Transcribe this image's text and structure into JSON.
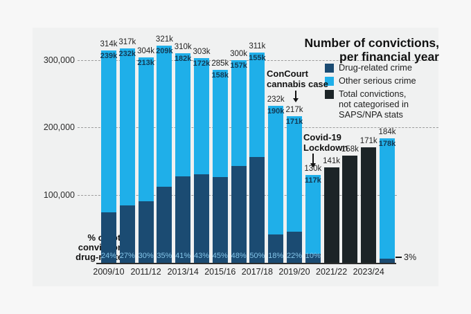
{
  "page": {
    "background": "#f7f7f7",
    "panel_background": "#f0f1f1"
  },
  "header": {
    "title_line1": "Number of convictions,",
    "title_line2": "per financial year"
  },
  "legend": {
    "items": [
      {
        "label": "Drug-related crime",
        "color": "#1b4b72"
      },
      {
        "label": "Other serious crime",
        "color": "#1fafe9"
      },
      {
        "label": "Total convictions, not categorised in SAPS/NPA stats",
        "label_lines": [
          "Total convictions,",
          "not categorised in",
          "SAPS/NPA stats"
        ],
        "color": "#1c2427"
      }
    ]
  },
  "annotations": {
    "concourt": {
      "lines": [
        "ConCourt",
        "cannabis case"
      ]
    },
    "covid": {
      "lines": [
        "Covid-19",
        "Lockdown"
      ]
    },
    "axis_note_lines": [
      "% of total",
      "convictions",
      "drug-related"
    ],
    "last_bar_pct": "3%"
  },
  "chart_data": {
    "type": "bar",
    "stacked": true,
    "title": "Number of convictions, per financial year",
    "units": "thousands of convictions per financial year",
    "ylim_k": [
      0,
      340
    ],
    "grid": "dashed horizontal",
    "legend_position": "top-right",
    "colors": {
      "drug_related": "#1b4b72",
      "other_serious": "#1fafe9",
      "uncategorised_total": "#1c2427",
      "pct_text": "#85c6ea",
      "other_value_text": "#123a55"
    },
    "y_axis": {
      "ticks": [
        {
          "value_k": 300,
          "label": "300,000"
        },
        {
          "value_k": 200,
          "label": "200,000"
        },
        {
          "value_k": 100,
          "label": "100,000"
        }
      ]
    },
    "x_tick_labels": [
      "2009/10",
      "2011/12",
      "2013/14",
      "2015/16",
      "2017/18",
      "2019/20",
      "2021/22",
      "2023/24"
    ],
    "bars": [
      {
        "year": "2009/10",
        "style": "stacked",
        "total_k": 314,
        "drug_k": 75,
        "other_k": 239,
        "total_label": "314k",
        "other_label": "239k",
        "pct_label": "24%"
      },
      {
        "year": "2010/11",
        "style": "stacked",
        "total_k": 317,
        "drug_k": 85,
        "other_k": 232,
        "total_label": "317k",
        "other_label": "232k",
        "pct_label": "27%"
      },
      {
        "year": "2011/12",
        "style": "stacked",
        "total_k": 304,
        "drug_k": 91,
        "other_k": 213,
        "total_label": "304k",
        "other_label": "213k",
        "pct_label": "30%"
      },
      {
        "year": "2012/13",
        "style": "stacked",
        "total_k": 321,
        "drug_k": 112,
        "other_k": 209,
        "total_label": "321k",
        "other_label": "209k",
        "pct_label": "35%"
      },
      {
        "year": "2013/14",
        "style": "stacked",
        "total_k": 310,
        "drug_k": 128,
        "other_k": 182,
        "total_label": "310k",
        "other_label": "182k",
        "pct_label": "41%"
      },
      {
        "year": "2014/15",
        "style": "stacked",
        "total_k": 303,
        "drug_k": 131,
        "other_k": 172,
        "total_label": "303k",
        "other_label": "172k",
        "pct_label": "43%"
      },
      {
        "year": "2015/16",
        "style": "stacked",
        "total_k": 285,
        "drug_k": 127,
        "other_k": 158,
        "total_label": "285k",
        "other_label": "158k",
        "pct_label": "45%"
      },
      {
        "year": "2016/17",
        "style": "stacked",
        "total_k": 300,
        "drug_k": 143,
        "other_k": 157,
        "total_label": "300k",
        "other_label": "157k",
        "pct_label": "48%"
      },
      {
        "year": "2017/18",
        "style": "stacked",
        "total_k": 311,
        "drug_k": 156,
        "other_k": 155,
        "total_label": "311k",
        "other_label": "155k",
        "pct_label": "50%"
      },
      {
        "year": "2018/19",
        "style": "stacked",
        "total_k": 232,
        "drug_k": 42,
        "other_k": 190,
        "total_label": "232k",
        "other_label": "190k",
        "pct_label": "18%"
      },
      {
        "year": "2019/20",
        "style": "stacked",
        "total_k": 217,
        "drug_k": 46,
        "other_k": 171,
        "total_label": "217k",
        "other_label": "171k",
        "pct_label": "22%"
      },
      {
        "year": "2020/21",
        "style": "stacked",
        "total_k": 130,
        "drug_k": 13,
        "other_k": 117,
        "total_label": "130k",
        "other_label": "117k",
        "pct_label": "10%"
      },
      {
        "year": "2021/22",
        "style": "black",
        "total_k": 141,
        "total_label": "141k"
      },
      {
        "year": "2022/23",
        "style": "black",
        "total_k": 158,
        "total_label": "158k"
      },
      {
        "year": "2023/24",
        "style": "black",
        "total_k": 171,
        "total_label": "171k"
      },
      {
        "year": "2024/25",
        "style": "stacked",
        "total_k": 184,
        "drug_k": 6,
        "other_k": 178,
        "total_label": "184k",
        "other_label": "178k",
        "pct_label": "3%",
        "pct_outside": true
      }
    ]
  }
}
